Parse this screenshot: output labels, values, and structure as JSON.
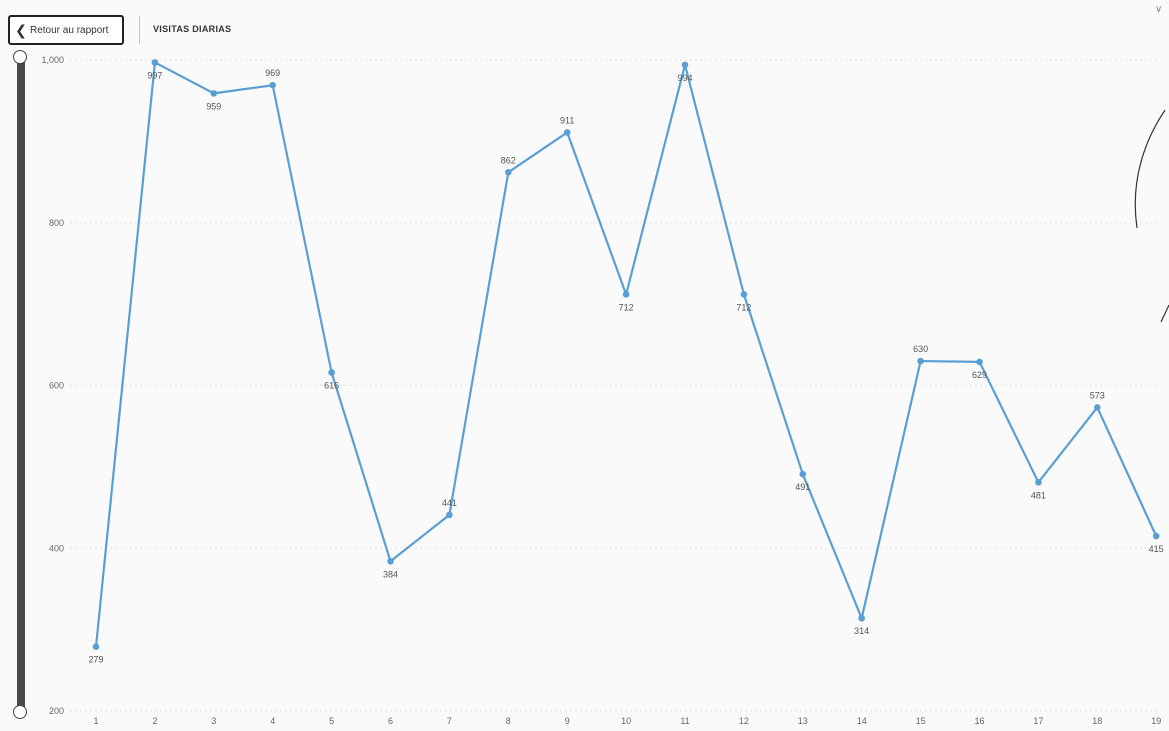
{
  "header": {
    "back_label": "Retour au rapport",
    "title": "VISITAS DIARIAS",
    "expand_glyph": "∨"
  },
  "icons": {
    "back": "chevron-left-icon",
    "expand": "chevron-down-icon"
  },
  "colors": {
    "line": "#5a9fd4",
    "grid": "#e3e3e3",
    "slider": "#4a4a4a"
  },
  "chart_data": {
    "type": "line",
    "title": "VISITAS DIARIAS",
    "xlabel": "",
    "ylabel": "",
    "x": [
      1,
      2,
      3,
      4,
      5,
      6,
      7,
      8,
      9,
      10,
      11,
      12,
      13,
      14,
      15,
      16,
      17,
      18,
      19
    ],
    "series": [
      {
        "name": "",
        "values": [
          279,
          997,
          959,
          969,
          616,
          384,
          441,
          862,
          911,
          712,
          994,
          712,
          491,
          314,
          630,
          629,
          481,
          573,
          415
        ],
        "labels": [
          "279",
          "997",
          "959",
          "969",
          "616",
          "384",
          "441",
          "862",
          "911",
          "712",
          "994",
          "712",
          "491",
          "314",
          "630",
          "629",
          "481",
          "573",
          "415"
        ]
      }
    ],
    "ylim": [
      200,
      1000
    ],
    "yticks": [
      200,
      400,
      600,
      800,
      1000
    ],
    "ytick_labels": [
      "200",
      "400",
      "600",
      "800",
      "1,000"
    ],
    "xtick_labels": [
      "1",
      "2",
      "3",
      "4",
      "5",
      "6",
      "7",
      "8",
      "9",
      "10",
      "11",
      "12",
      "13",
      "14",
      "15",
      "16",
      "17",
      "18",
      "19"
    ],
    "grid": true,
    "legend": "none"
  }
}
